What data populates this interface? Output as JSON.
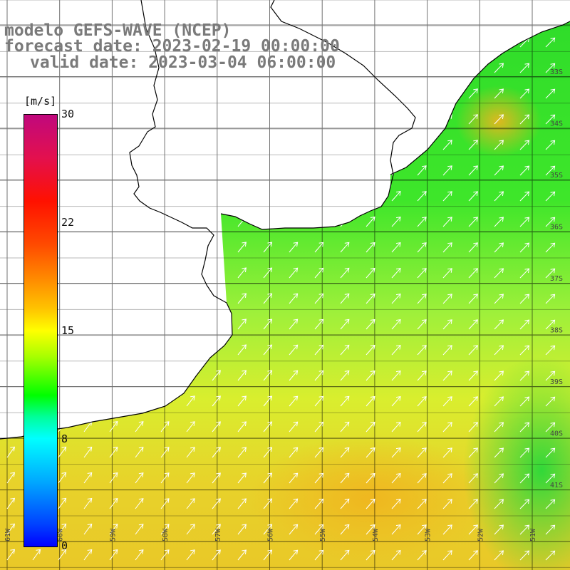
{
  "title": {
    "line1": "modelo GEFS-WAVE (NCEP)",
    "line2": "forecast date: 2023-02-19 00:00:00",
    "line3": "valid date: 2023-03-04 06:00:00"
  },
  "colorbar": {
    "unit": "[m/s]",
    "min": 0,
    "max": 30,
    "ticks": [
      "30",
      "22",
      "15",
      "8",
      "0"
    ],
    "colors": [
      "#c0087d",
      "#ff1100",
      "#ff8a00",
      "#ffff00",
      "#00ff00",
      "#00ffff",
      "#0000ff"
    ]
  },
  "map": {
    "variable": "wind speed with direction arrows",
    "lon_labels": [
      "61W",
      "60W",
      "59W",
      "58W",
      "57W",
      "56W",
      "55W",
      "54W",
      "53W",
      "52W",
      "51W"
    ],
    "lat_labels": [
      "33S",
      "34S",
      "35S",
      "36S",
      "37S",
      "38S",
      "39S",
      "40S",
      "41S"
    ],
    "land_color": "#ffffff",
    "coast_color": "#000000",
    "arrow_color": "#ffffff",
    "grid_color": "#000000"
  }
}
